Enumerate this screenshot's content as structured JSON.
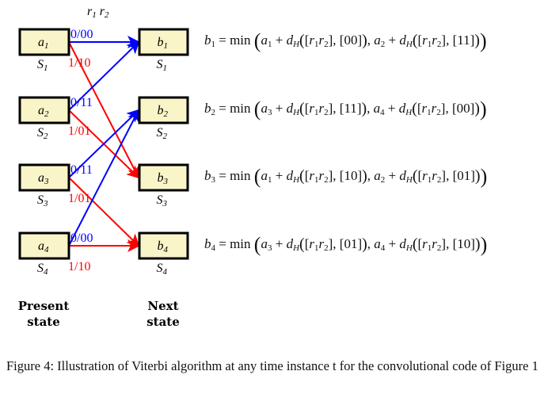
{
  "header": {
    "r1": "r",
    "r1_sub": "1",
    "r2": "r",
    "r2_sub": "2"
  },
  "colors": {
    "box_fill": "#faf5c8",
    "zero_branch": "#0000ff",
    "one_branch": "#ff0000"
  },
  "present_states": [
    {
      "label": "a",
      "sub": "1",
      "state": "S",
      "state_sub": "1"
    },
    {
      "label": "a",
      "sub": "2",
      "state": "S",
      "state_sub": "2"
    },
    {
      "label": "a",
      "sub": "3",
      "state": "S",
      "state_sub": "3"
    },
    {
      "label": "a",
      "sub": "4",
      "state": "S",
      "state_sub": "4"
    }
  ],
  "next_states": [
    {
      "label": "b",
      "sub": "1",
      "state": "S",
      "state_sub": "1"
    },
    {
      "label": "b",
      "sub": "2",
      "state": "S",
      "state_sub": "2"
    },
    {
      "label": "b",
      "sub": "3",
      "state": "S",
      "state_sub": "3"
    },
    {
      "label": "b",
      "sub": "4",
      "state": "S",
      "state_sub": "4"
    }
  ],
  "transitions": [
    {
      "from": 1,
      "to": 1,
      "label": "0/00",
      "type": "zero"
    },
    {
      "from": 1,
      "to": 3,
      "label": "1/10",
      "type": "one"
    },
    {
      "from": 2,
      "to": 1,
      "label": "0/11",
      "type": "zero"
    },
    {
      "from": 2,
      "to": 3,
      "label": "1/01",
      "type": "one"
    },
    {
      "from": 3,
      "to": 2,
      "label": "0/11",
      "type": "zero"
    },
    {
      "from": 3,
      "to": 4,
      "label": "1/01",
      "type": "one"
    },
    {
      "from": 4,
      "to": 2,
      "label": "0/00",
      "type": "zero"
    },
    {
      "from": 4,
      "to": 4,
      "label": "1/10",
      "type": "one"
    }
  ],
  "equations": [
    {
      "lhs": "1",
      "terms": [
        {
          "a": "1",
          "code": "00"
        },
        {
          "a": "2",
          "code": "11"
        }
      ]
    },
    {
      "lhs": "2",
      "terms": [
        {
          "a": "3",
          "code": "11"
        },
        {
          "a": "4",
          "code": "00"
        }
      ]
    },
    {
      "lhs": "3",
      "terms": [
        {
          "a": "1",
          "code": "10"
        },
        {
          "a": "2",
          "code": "01"
        }
      ]
    },
    {
      "lhs": "4",
      "terms": [
        {
          "a": "3",
          "code": "01"
        },
        {
          "a": "4",
          "code": "10"
        }
      ]
    }
  ],
  "labels": {
    "present": [
      "Present",
      "state"
    ],
    "next": [
      "Next",
      "state"
    ]
  },
  "caption": "Figure 4: Illustration of Viterbi algorithm at any time instance t for the convolutional code of Figure 1"
}
